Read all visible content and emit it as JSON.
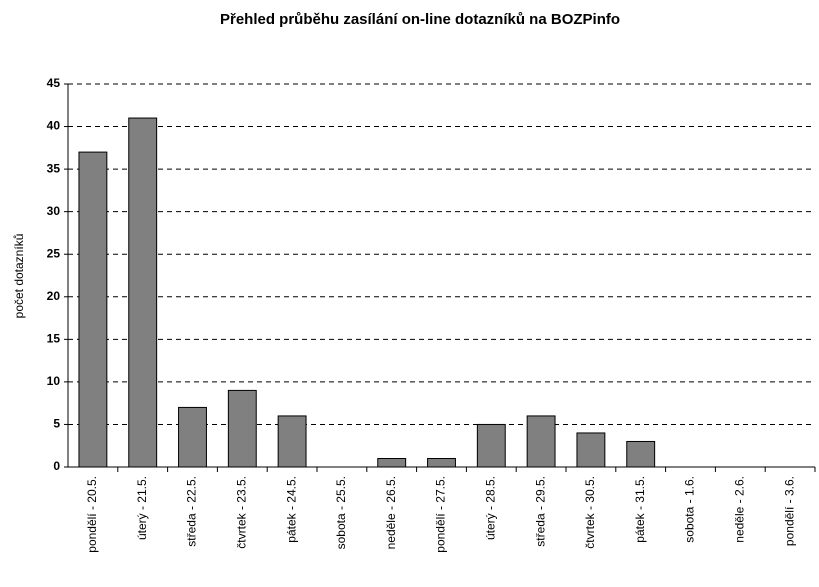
{
  "chart_data": {
    "type": "bar",
    "title": "Přehled průběhu zasílání on-line dotazníků na BOZPinfo",
    "ylabel": "počet dotazníků",
    "categories": [
      "pondělí - 20.5.",
      "úterý - 21.5.",
      "středa - 22.5.",
      "čtvrtek - 23.5.",
      "pátek - 24.5.",
      "sobota - 25.5.",
      "neděle - 26.5.",
      "pondělí - 27.5.",
      "úterý - 28.5.",
      "středa - 29.5.",
      "čtvrtek - 30.5.",
      "pátek - 31.5.",
      "sobota - 1.6.",
      "neděle - 2.6.",
      "pondělí - 3.6."
    ],
    "values": [
      37,
      41,
      7,
      9,
      6,
      0,
      1,
      1,
      5,
      6,
      4,
      3,
      0,
      0,
      0
    ],
    "color": "#808080",
    "ylim": [
      0,
      45
    ],
    "yticks": [
      0,
      5,
      10,
      15,
      20,
      25,
      30,
      35,
      40,
      45
    ],
    "grid": true
  }
}
